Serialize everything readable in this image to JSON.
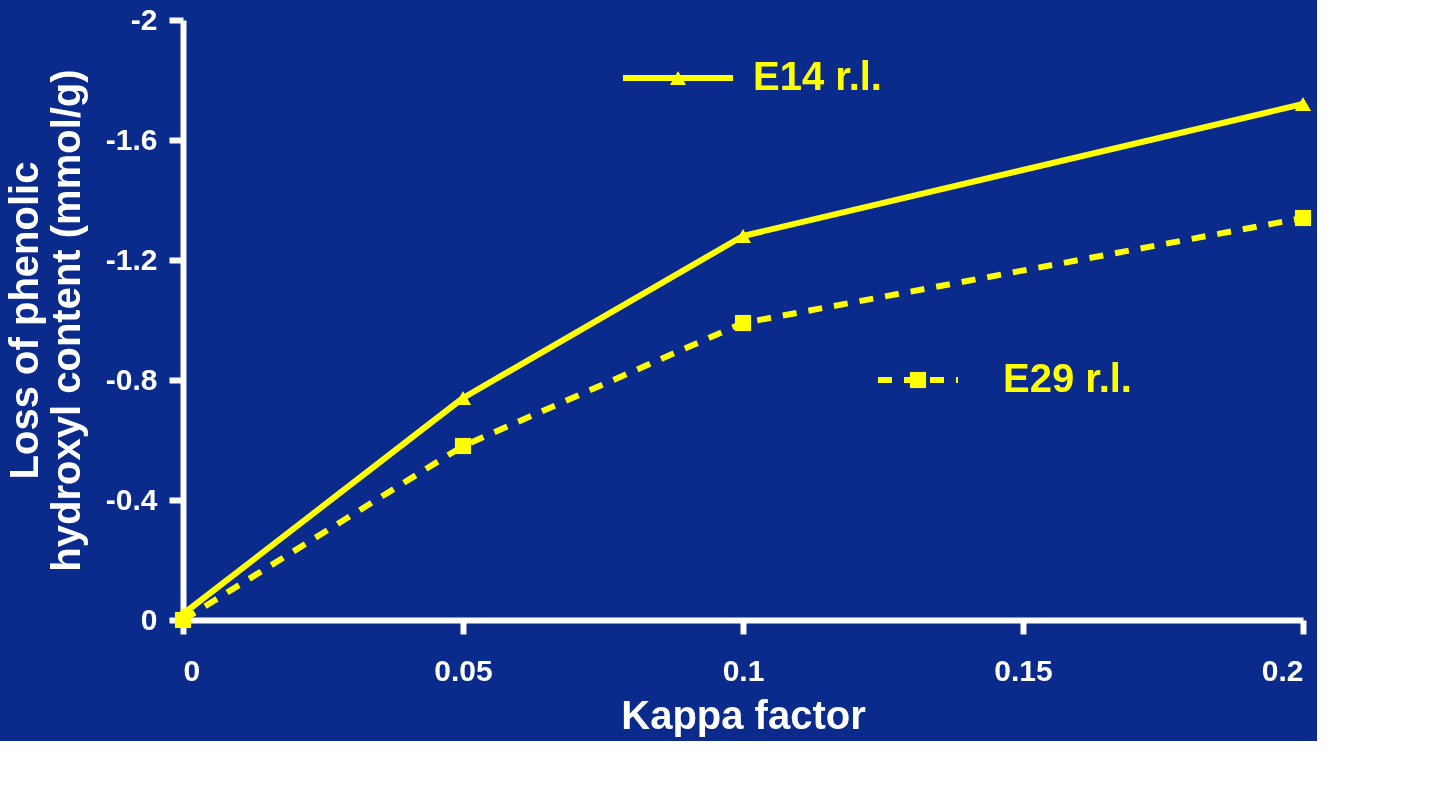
{
  "chart_data": {
    "type": "line",
    "xlabel": "Kappa factor",
    "ylabel": "Loss of phenolic hydroxyl content (mmol/g)",
    "x": [
      0,
      0.05,
      0.1,
      0.2
    ],
    "series": [
      {
        "name": "E14 r.l.",
        "color": "#ffff00",
        "values": [
          -0.02,
          -0.74,
          -1.28,
          -1.72
        ],
        "marker": "triangle",
        "line_style": "solid"
      },
      {
        "name": "E29 r.l.",
        "color": "#ffff00",
        "values": [
          0,
          -0.58,
          -0.99,
          -1.34
        ],
        "marker": "square",
        "line_style": "dashed"
      }
    ],
    "xlim": [
      0,
      0.2
    ],
    "xticks": [
      0,
      0.05,
      0.1,
      0.15,
      0.2
    ],
    "ylim": [
      0,
      -2
    ],
    "yticks": [
      0,
      -0.4,
      -0.8,
      -1.2,
      -1.6,
      -2
    ],
    "grid": false,
    "legend": "top right"
  }
}
